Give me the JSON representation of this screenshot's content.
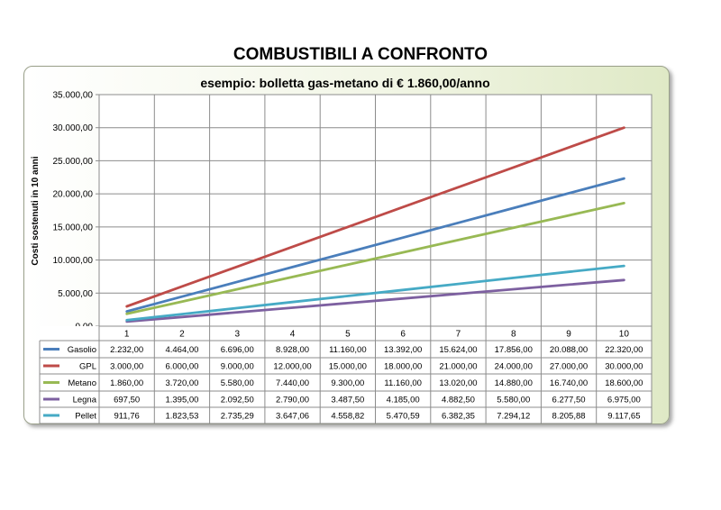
{
  "page": {
    "title": "COMBUSTIBILI A CONFRONTO"
  },
  "chart_data": {
    "type": "line",
    "title": "esempio: bolletta gas-metano di € 1.860,00/anno",
    "xlabel": "",
    "ylabel": "Costi sostenuti in 10 anni",
    "ylim": [
      0,
      35000
    ],
    "yticks": [
      "0,00",
      "5.000,00",
      "10.000,00",
      "15.000,00",
      "20.000,00",
      "25.000,00",
      "30.000,00",
      "35.000,00"
    ],
    "categories": [
      "1",
      "2",
      "3",
      "4",
      "5",
      "6",
      "7",
      "8",
      "9",
      "10"
    ],
    "grid": true,
    "legend": "data-table",
    "series": [
      {
        "name": "Gasolio",
        "color": "#4a7ebb",
        "values": [
          2232,
          4464,
          6696,
          8928,
          11160,
          13392,
          15624,
          17856,
          20088,
          22320
        ],
        "labels": [
          "2.232,00",
          "4.464,00",
          "6.696,00",
          "8.928,00",
          "11.160,00",
          "13.392,00",
          "15.624,00",
          "17.856,00",
          "20.088,00",
          "22.320,00"
        ]
      },
      {
        "name": "GPL",
        "color": "#be4b48",
        "values": [
          3000,
          6000,
          9000,
          12000,
          15000,
          18000,
          21000,
          24000,
          27000,
          30000
        ],
        "labels": [
          "3.000,00",
          "6.000,00",
          "9.000,00",
          "12.000,00",
          "15.000,00",
          "18.000,00",
          "21.000,00",
          "24.000,00",
          "27.000,00",
          "30.000,00"
        ]
      },
      {
        "name": "Metano",
        "color": "#98b954",
        "values": [
          1860,
          3720,
          5580,
          7440,
          9300,
          11160,
          13020,
          14880,
          16740,
          18600
        ],
        "labels": [
          "1.860,00",
          "3.720,00",
          "5.580,00",
          "7.440,00",
          "9.300,00",
          "11.160,00",
          "13.020,00",
          "14.880,00",
          "16.740,00",
          "18.600,00"
        ]
      },
      {
        "name": "Legna",
        "color": "#7d60a0",
        "values": [
          697.5,
          1395,
          2092.5,
          2790,
          3487.5,
          4185,
          4882.5,
          5580,
          6277.5,
          6975
        ],
        "labels": [
          "697,50",
          "1.395,00",
          "2.092,50",
          "2.790,00",
          "3.487,50",
          "4.185,00",
          "4.882,50",
          "5.580,00",
          "6.277,50",
          "6.975,00"
        ]
      },
      {
        "name": "Pellet",
        "color": "#46aac5",
        "values": [
          911.76,
          1823.53,
          2735.29,
          3647.06,
          4558.82,
          5470.59,
          6382.35,
          7294.12,
          8205.88,
          9117.65
        ],
        "labels": [
          "911,76",
          "1.823,53",
          "2.735,29",
          "3.647,06",
          "4.558,82",
          "5.470,59",
          "6.382,35",
          "7.294,12",
          "8.205,88",
          "9.117,65"
        ]
      }
    ]
  }
}
